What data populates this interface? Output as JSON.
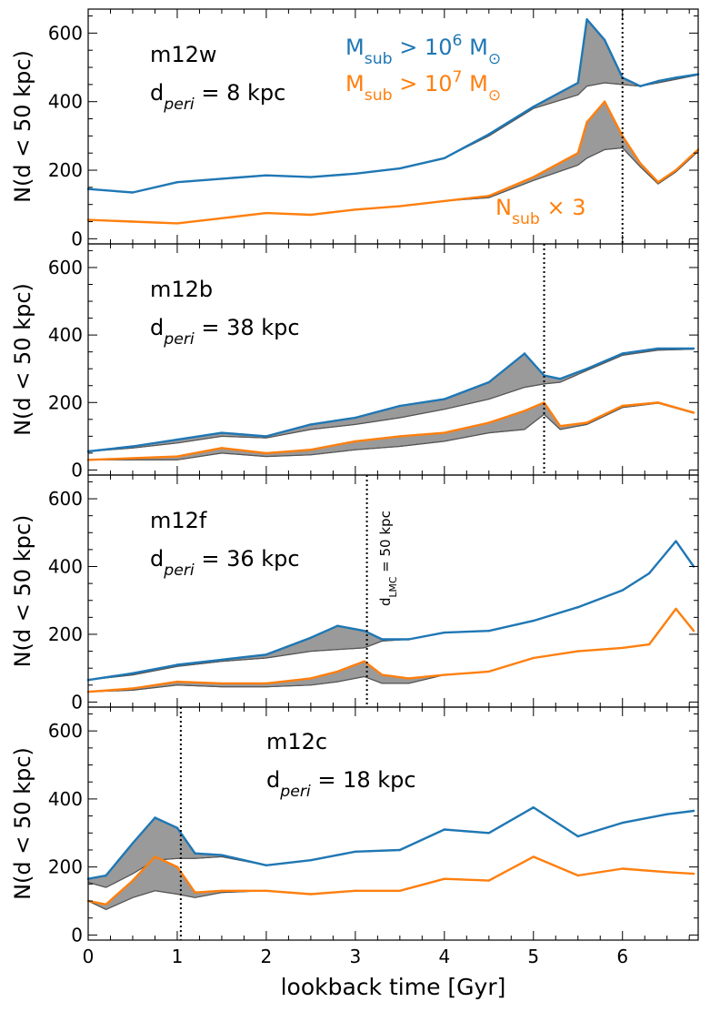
{
  "chart_data": {
    "type": "line",
    "xlabel": "lookback time [Gyr]",
    "ylabel": "N(d < 50 kpc)",
    "xlim": [
      0,
      6.85
    ],
    "ylim": [
      -15,
      670
    ],
    "x_ticks": [
      "0",
      "1",
      "2",
      "3",
      "4",
      "5",
      "6"
    ],
    "y_ticks": [
      "0",
      "200",
      "400",
      "600"
    ],
    "legend": {
      "placement": "top-right",
      "entries": [
        {
          "label": "M_sub > 10^6 M_sun",
          "base": "M",
          "sub": "sub",
          "rel": " > 10",
          "sup": "6",
          "unit": " M",
          "color": "#1f77b4"
        },
        {
          "label": "M_sub > 10^7 M_sun",
          "base": "M",
          "sub": "sub",
          "rel": " > 10",
          "sup": "7",
          "unit": " M",
          "color": "#ff7f0e"
        }
      ],
      "note": {
        "base": "N",
        "sub": "sub",
        "rest": " × 3",
        "color": "#ff7f0e"
      }
    },
    "vline_annotation": {
      "base": "d",
      "sub": "LMC",
      "rest": " = 50 kpc"
    },
    "band_color": "#9a9a9a",
    "panels": [
      {
        "name": "m12w",
        "dperi": "8 kpc",
        "vline": 6.0,
        "x": [
          0,
          0.5,
          1.0,
          1.5,
          2.0,
          2.5,
          3.0,
          3.5,
          4.0,
          4.5,
          5.0,
          5.5,
          5.6,
          5.8,
          6.0,
          6.2,
          6.4,
          6.6,
          6.85
        ],
        "series": [
          {
            "name": "M_sub > 10^6",
            "color": "#1f77b4",
            "values": [
              145,
              135,
              165,
              175,
              185,
              180,
              190,
              205,
              235,
              305,
              385,
              455,
              640,
              580,
              470,
              445,
              460,
              470,
              480
            ],
            "band_lower": [
              145,
              135,
              165,
              175,
              185,
              180,
              190,
              205,
              235,
              300,
              380,
              420,
              445,
              455,
              450,
              445,
              455,
              465,
              478
            ]
          },
          {
            "name": "M_sub > 10^7 (N_sub x 3)",
            "color": "#ff7f0e",
            "values": [
              55,
              50,
              45,
              60,
              75,
              70,
              85,
              95,
              110,
              125,
              180,
              250,
              340,
              400,
              300,
              220,
              165,
              200,
              260
            ],
            "band_lower": [
              55,
              50,
              45,
              60,
              75,
              70,
              85,
              95,
              110,
              120,
              170,
              215,
              235,
              260,
              265,
              210,
              160,
              195,
              255
            ]
          }
        ]
      },
      {
        "name": "m12b",
        "dperi": "38 kpc",
        "vline": 5.12,
        "x": [
          0,
          0.5,
          1.0,
          1.5,
          2.0,
          2.5,
          3.0,
          3.5,
          4.0,
          4.5,
          4.9,
          5.12,
          5.3,
          5.6,
          6.0,
          6.4,
          6.8
        ],
        "series": [
          {
            "name": "M_sub > 10^6",
            "color": "#1f77b4",
            "values": [
              55,
              70,
              90,
              110,
              100,
              135,
              155,
              190,
              210,
              260,
              345,
              280,
              270,
              300,
              345,
              360,
              360
            ],
            "band_lower": [
              55,
              65,
              80,
              100,
              95,
              120,
              135,
              155,
              180,
              210,
              245,
              255,
              260,
              295,
              340,
              355,
              358
            ]
          },
          {
            "name": "M_sub > 10^7 (N_sub x 3)",
            "color": "#ff7f0e",
            "values": [
              30,
              35,
              40,
              65,
              50,
              60,
              85,
              100,
              110,
              140,
              175,
              200,
              130,
              140,
              190,
              200,
              170
            ],
            "band_lower": [
              30,
              30,
              30,
              50,
              40,
              45,
              60,
              70,
              85,
              110,
              120,
              165,
              120,
              135,
              185,
              198,
              168
            ]
          }
        ]
      },
      {
        "name": "m12f",
        "dperi": "36 kpc",
        "vline": 3.13,
        "x": [
          0,
          0.5,
          1.0,
          1.5,
          2.0,
          2.5,
          2.8,
          3.1,
          3.3,
          3.6,
          4.0,
          4.5,
          5.0,
          5.5,
          6.0,
          6.3,
          6.6,
          6.8
        ],
        "series": [
          {
            "name": "M_sub > 10^6",
            "color": "#1f77b4",
            "values": [
              65,
              85,
              110,
              125,
              140,
              190,
              225,
              210,
              185,
              185,
              205,
              210,
              240,
              280,
              330,
              380,
              475,
              400
            ],
            "band_lower": [
              65,
              80,
              105,
              120,
              130,
              150,
              155,
              160,
              180,
              185,
              205,
              210,
              240,
              280,
              330,
              380,
              475,
              400
            ]
          },
          {
            "name": "M_sub > 10^7 (N_sub x 3)",
            "color": "#ff7f0e",
            "values": [
              30,
              40,
              60,
              55,
              55,
              70,
              90,
              120,
              80,
              70,
              80,
              90,
              130,
              150,
              160,
              170,
              275,
              210
            ],
            "band_lower": [
              30,
              35,
              50,
              45,
              45,
              50,
              60,
              75,
              55,
              55,
              80,
              90,
              130,
              150,
              160,
              170,
              275,
              210
            ]
          }
        ]
      },
      {
        "name": "m12c",
        "dperi": "18 kpc",
        "vline": 1.04,
        "x": [
          0,
          0.2,
          0.5,
          0.75,
          1.0,
          1.2,
          1.5,
          2.0,
          2.5,
          3.0,
          3.5,
          4.0,
          4.5,
          5.0,
          5.5,
          6.0,
          6.5,
          6.8
        ],
        "series": [
          {
            "name": "M_sub > 10^6",
            "color": "#1f77b4",
            "values": [
              165,
              175,
              270,
              345,
              315,
              240,
              235,
              205,
              220,
              245,
              250,
              310,
              300,
              375,
              290,
              330,
              355,
              365
            ],
            "band_lower": [
              155,
              140,
              180,
              220,
              225,
              225,
              230,
              205,
              220,
              245,
              250,
              310,
              300,
              375,
              290,
              330,
              355,
              365
            ]
          },
          {
            "name": "M_sub > 10^7 (N_sub x 3)",
            "color": "#ff7f0e",
            "values": [
              100,
              90,
              160,
              230,
              200,
              125,
              130,
              130,
              120,
              130,
              130,
              165,
              160,
              230,
              175,
              195,
              185,
              180
            ],
            "band_lower": [
              100,
              75,
              110,
              130,
              120,
              110,
              125,
              130,
              120,
              130,
              130,
              165,
              160,
              230,
              175,
              195,
              185,
              180
            ]
          }
        ]
      }
    ]
  }
}
